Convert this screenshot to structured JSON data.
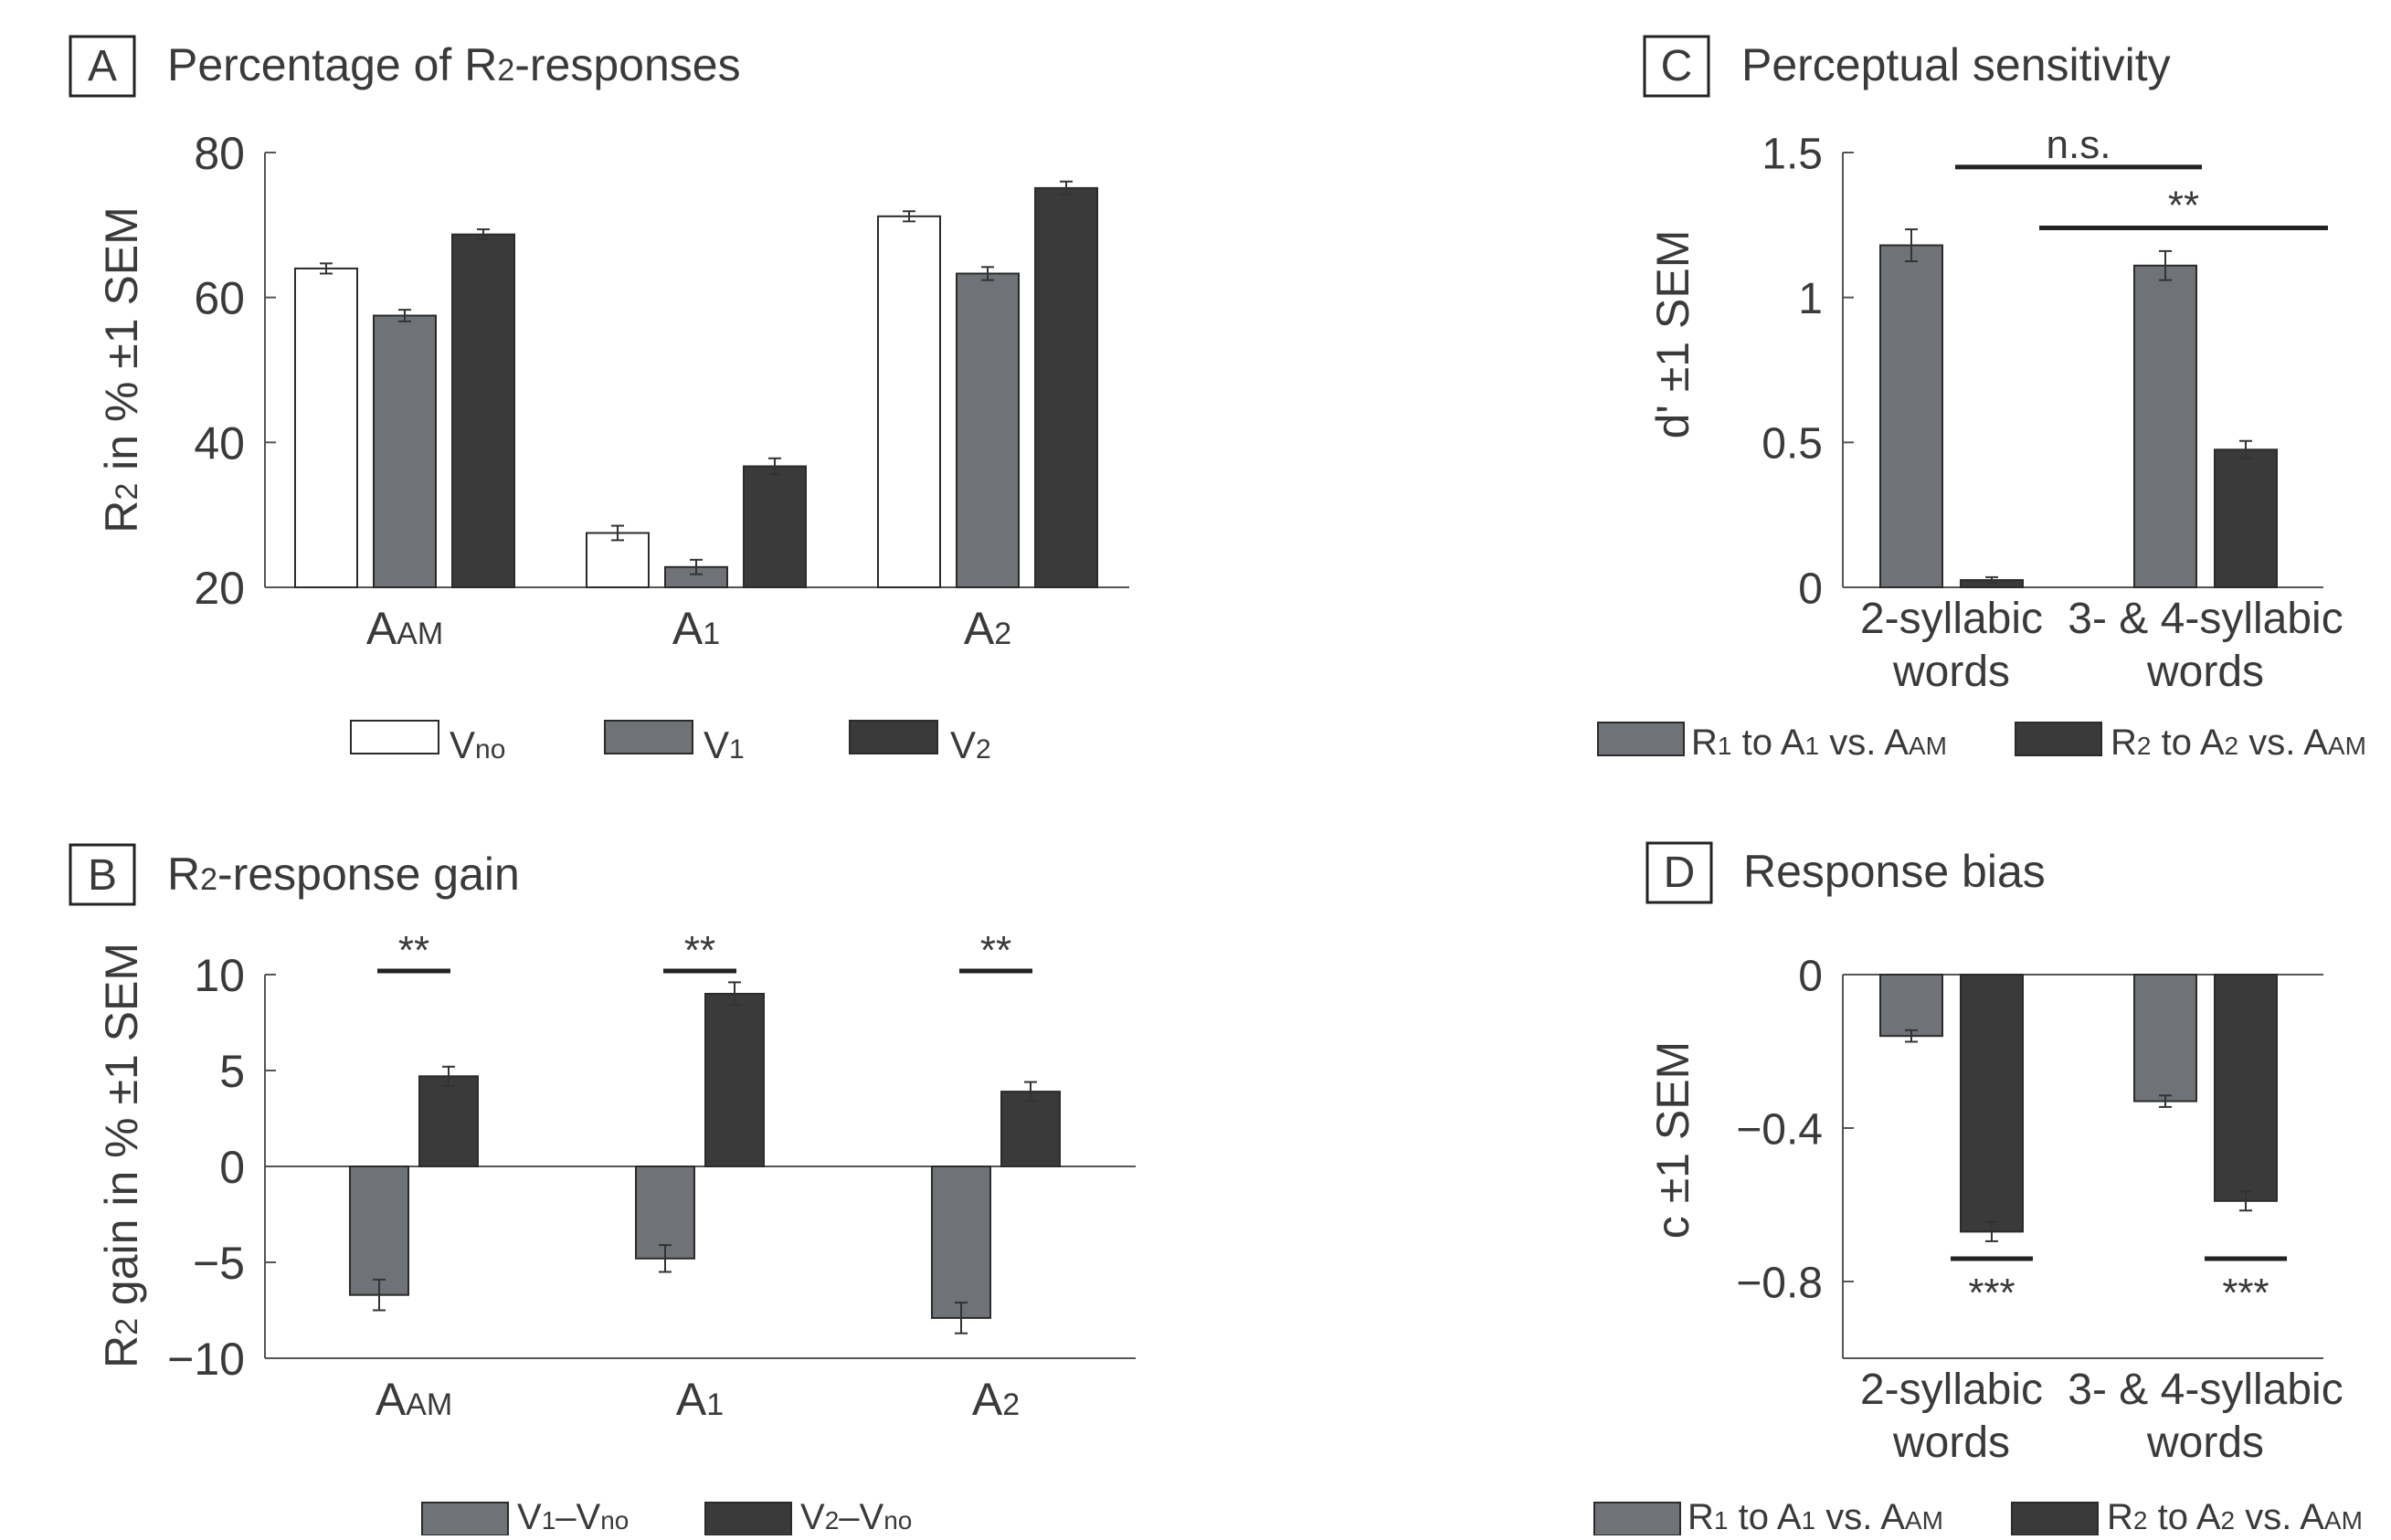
{
  "colors": {
    "white": "#ffffff",
    "gray": "#6f7276",
    "dark": "#3a3a3b"
  },
  "panels": {
    "A": {
      "letter": "A",
      "title_main": "Percentage of R",
      "title_sub": "2",
      "title_rest": "-responses",
      "ylabel_main": "R",
      "ylabel_sub": "2",
      "ylabel_rest": " in % ±1 SEM",
      "legend": [
        {
          "main": "V",
          "sub": "no",
          "color": "white"
        },
        {
          "main": "V",
          "sub": "1",
          "color": "gray"
        },
        {
          "main": "V",
          "sub": "2",
          "color": "dark"
        }
      ]
    },
    "B": {
      "letter": "B",
      "title_main": "R",
      "title_sub": "2",
      "title_rest": "-response gain",
      "ylabel_main": "R",
      "ylabel_sub": "2",
      "ylabel_rest": " gain in % ±1 SEM",
      "legend": [
        {
          "main": "V",
          "sub": "1",
          "main2": "–V",
          "sub2": "no",
          "color": "gray"
        },
        {
          "main": "V",
          "sub": "2",
          "main2": "–V",
          "sub2": "no",
          "color": "dark"
        }
      ]
    },
    "C": {
      "letter": "C",
      "title": "Perceptual sensitivity",
      "ylabel": "d' ±1 SEM",
      "ns_label": "n.s.",
      "sig_label": "**",
      "legend": [
        {
          "main": "R",
          "sub": "1",
          "rest": " to A",
          "sub2": "1",
          "rest2": " vs. A",
          "sub3": "AM",
          "color": "gray"
        },
        {
          "main": "R",
          "sub": "2",
          "rest": " to A",
          "sub2": "2",
          "rest2": " vs. A",
          "sub3": "AM",
          "color": "dark"
        }
      ]
    },
    "D": {
      "letter": "D",
      "title": "Response bias",
      "ylabel": "c ±1 SEM",
      "sig_label": "***",
      "legend": [
        {
          "main": "R",
          "sub": "1",
          "rest": " to A",
          "sub2": "1",
          "rest2": " vs. A",
          "sub3": "AM",
          "color": "gray"
        },
        {
          "main": "R",
          "sub": "2",
          "rest": " to A",
          "sub2": "2",
          "rest2": " vs. A",
          "sub3": "AM",
          "color": "dark"
        }
      ]
    }
  },
  "chart_data": [
    {
      "panel": "A",
      "type": "bar",
      "categories": [
        {
          "main": "A",
          "sub": "AM"
        },
        {
          "main": "A",
          "sub": "1"
        },
        {
          "main": "A",
          "sub": "2"
        }
      ],
      "series": [
        {
          "color": "white",
          "values": [
            64,
            27.5,
            71.2
          ],
          "errors": [
            0.7,
            1.0,
            0.7
          ]
        },
        {
          "color": "gray",
          "values": [
            57.5,
            22.8,
            63.3
          ],
          "errors": [
            0.8,
            1.0,
            0.9
          ]
        },
        {
          "color": "dark",
          "values": [
            68.7,
            36.7,
            75.1
          ],
          "errors": [
            0.7,
            1.1,
            0.9
          ]
        }
      ],
      "ylim": [
        20,
        80
      ],
      "yticks": [
        20,
        40,
        60,
        80
      ],
      "ytick_labels": [
        "20",
        "40",
        "60",
        "80"
      ]
    },
    {
      "panel": "B",
      "type": "bar",
      "categories": [
        {
          "main": "A",
          "sub": "AM"
        },
        {
          "main": "A",
          "sub": "1"
        },
        {
          "main": "A",
          "sub": "2"
        }
      ],
      "series": [
        {
          "color": "gray",
          "values": [
            -6.7,
            -4.8,
            -7.9
          ],
          "errors": [
            0.8,
            0.7,
            0.8
          ]
        },
        {
          "color": "dark",
          "values": [
            4.7,
            9.0,
            3.9
          ],
          "errors": [
            0.5,
            0.6,
            0.5
          ]
        }
      ],
      "significance": [
        "**",
        "**",
        "**"
      ],
      "ylim": [
        -10,
        10
      ],
      "yticks": [
        -10,
        -5,
        0,
        5,
        10
      ],
      "ytick_labels": [
        "−10",
        "−5",
        "0",
        "5",
        "10"
      ]
    },
    {
      "panel": "C",
      "type": "bar",
      "categories": [
        "2-syllabic words",
        "3- & 4-syllabic words"
      ],
      "category_lines": [
        [
          "2-syllabic",
          "words"
        ],
        [
          "3- & 4-syllabic",
          "words"
        ]
      ],
      "series": [
        {
          "color": "gray",
          "values": [
            1.18,
            1.11
          ],
          "errors": [
            0.055,
            0.05
          ]
        },
        {
          "color": "dark",
          "values": [
            0.025,
            0.475
          ],
          "errors": [
            0.01,
            0.03
          ]
        }
      ],
      "comparisons": [
        {
          "label": "n.s.",
          "value": 1.45
        },
        {
          "label": "**",
          "value": 1.24
        }
      ],
      "ylim": [
        0,
        1.5
      ],
      "yticks": [
        0,
        0.5,
        1,
        1.5
      ],
      "ytick_labels": [
        "0",
        "0.5",
        "1",
        "1.5"
      ]
    },
    {
      "panel": "D",
      "type": "bar",
      "categories": [
        "2-syllabic words",
        "3- & 4-syllabic words"
      ],
      "category_lines": [
        [
          "2-syllabic",
          "words"
        ],
        [
          "3- & 4-syllabic",
          "words"
        ]
      ],
      "series": [
        {
          "color": "gray",
          "values": [
            -0.16,
            -0.33
          ],
          "errors": [
            0.015,
            0.015
          ]
        },
        {
          "color": "dark",
          "values": [
            -0.67,
            -0.59
          ],
          "errors": [
            0.025,
            0.025
          ]
        }
      ],
      "significance": [
        "***",
        "***"
      ],
      "ylim": [
        -1.0,
        0
      ],
      "yticks": [
        -0.8,
        -0.4,
        0
      ],
      "ytick_labels": [
        "−0.8",
        "−0.4",
        "0"
      ]
    }
  ]
}
